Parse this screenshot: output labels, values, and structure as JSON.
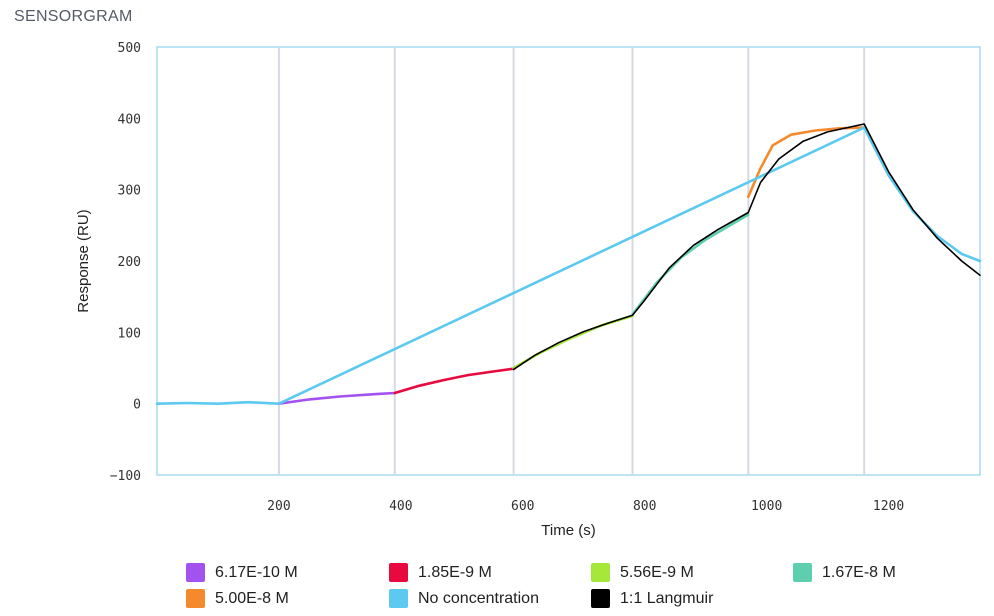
{
  "header": {
    "title": "SENSORGRAM"
  },
  "chart_data": {
    "type": "line",
    "xlabel": "Time (s)",
    "ylabel": "Response (RU)",
    "xlim": [
      0,
      1350
    ],
    "ylim": [
      -100,
      500
    ],
    "x_ticks": [
      200,
      400,
      600,
      800,
      1000,
      1200
    ],
    "y_ticks": [
      -100,
      0,
      100,
      200,
      300,
      400,
      500
    ],
    "vertical_gridlines": [
      200,
      390,
      585,
      780,
      970,
      1160
    ],
    "grid": "vertical",
    "legend_position": "bottom",
    "series": [
      {
        "name": "6.17E-10 M",
        "color": "#a352f0",
        "x": [
          200,
          250,
          300,
          350,
          390
        ],
        "y": [
          0,
          6,
          10,
          13,
          15
        ]
      },
      {
        "name": "1.85E-9 M",
        "color": "#e8093e",
        "x": [
          390,
          430,
          470,
          510,
          550,
          585
        ],
        "y": [
          15,
          25,
          33,
          40,
          45,
          49
        ]
      },
      {
        "name": "5.56E-9 M",
        "color": "#a6e83a",
        "x": [
          585,
          630,
          680,
          730,
          780
        ],
        "y": [
          50,
          72,
          92,
          110,
          123
        ]
      },
      {
        "name": "1.67E-8 M",
        "color": "#5ecfae",
        "x": [
          780,
          820,
          860,
          900,
          940,
          970
        ],
        "y": [
          125,
          170,
          205,
          230,
          250,
          265
        ]
      },
      {
        "name": "5.00E-8 M",
        "color": "#f58a2c",
        "x": [
          970,
          990,
          1010,
          1040,
          1080,
          1120,
          1160
        ],
        "y": [
          290,
          330,
          362,
          377,
          383,
          386,
          387
        ]
      },
      {
        "name": "No concentration",
        "color": "#5cc9f0",
        "x": [
          0,
          50,
          100,
          150,
          200,
          1160,
          1200,
          1240,
          1280,
          1320,
          1350
        ],
        "y": [
          0,
          1,
          0,
          2,
          0,
          387,
          320,
          270,
          235,
          210,
          200
        ]
      },
      {
        "name": "1:1 Langmuir",
        "color": "#000000",
        "x": [
          585,
          620,
          660,
          700,
          740,
          780,
          800,
          840,
          880,
          920,
          970,
          990,
          1020,
          1060,
          1100,
          1160,
          1200,
          1240,
          1280,
          1320,
          1350
        ],
        "y": [
          48,
          68,
          86,
          101,
          113,
          124,
          145,
          190,
          222,
          244,
          268,
          310,
          343,
          368,
          381,
          392,
          325,
          272,
          232,
          200,
          180
        ]
      }
    ]
  },
  "legend_items": [
    {
      "label": "6.17E-10 M",
      "color": "#a352f0"
    },
    {
      "label": "1.85E-9 M",
      "color": "#e8093e"
    },
    {
      "label": "5.56E-9 M",
      "color": "#a6e83a"
    },
    {
      "label": "1.67E-8 M",
      "color": "#5ecfae"
    },
    {
      "label": "5.00E-8 M",
      "color": "#f58a2c"
    },
    {
      "label": "No concentration",
      "color": "#5cc9f0"
    },
    {
      "label": "1:1 Langmuir",
      "color": "#000000"
    }
  ]
}
